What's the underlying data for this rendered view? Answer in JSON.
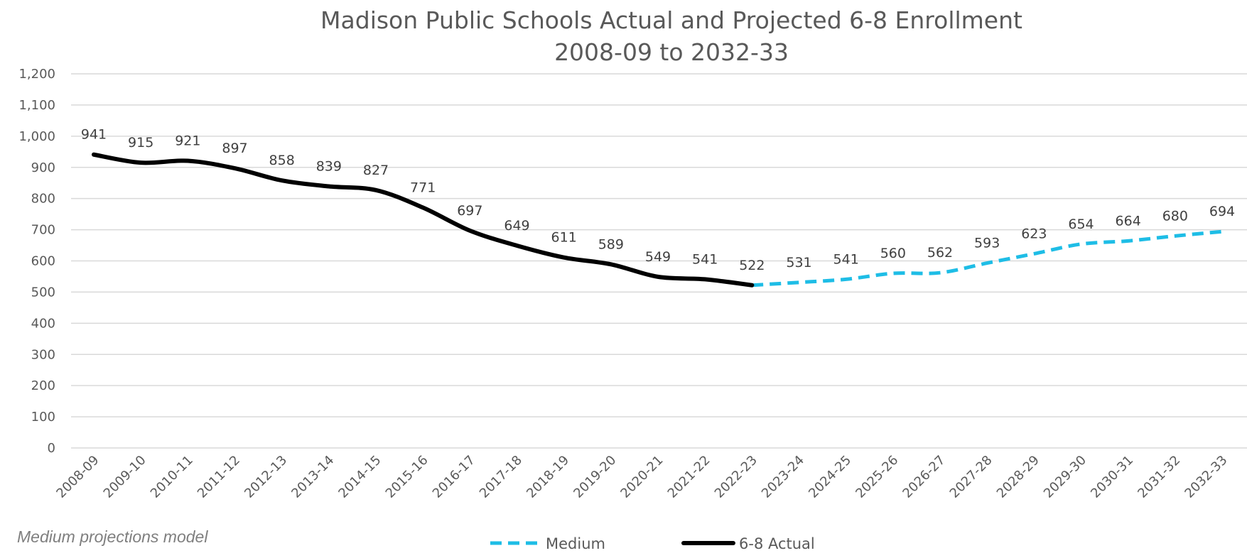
{
  "chart_data": {
    "type": "line",
    "title": "Madison Public Schools Actual and Projected 6-8 Enrollment",
    "subtitle": "2008-09 to 2032-33",
    "xlabel": "",
    "ylabel": "",
    "ylim": [
      0,
      1200
    ],
    "yticks": [
      "0",
      "100",
      "200",
      "300",
      "400",
      "500",
      "600",
      "700",
      "800",
      "900",
      "1,000",
      "1,100",
      "1,200"
    ],
    "grid": true,
    "legend_position": "bottom",
    "categories": [
      "2008-09",
      "2009-10",
      "2010-11",
      "2011-12",
      "2012-13",
      "2013-14",
      "2014-15",
      "2015-16",
      "2016-17",
      "2017-18",
      "2018-19",
      "2019-20",
      "2020-21",
      "2021-22",
      "2022-23",
      "2023-24",
      "2024-25",
      "2025-26",
      "2026-27",
      "2027-28",
      "2028-29",
      "2029-30",
      "2030-31",
      "2031-32",
      "2032-33"
    ],
    "series": [
      {
        "name": "Medium",
        "color": "#1ebde6",
        "style": "dashed",
        "values": [
          null,
          null,
          null,
          null,
          null,
          null,
          null,
          null,
          null,
          null,
          null,
          null,
          null,
          null,
          522,
          531,
          541,
          560,
          562,
          593,
          623,
          654,
          664,
          680,
          694
        ]
      },
      {
        "name": "6-8 Actual",
        "color": "#000000",
        "style": "solid",
        "values": [
          941,
          915,
          921,
          897,
          858,
          839,
          827,
          771,
          697,
          649,
          611,
          589,
          549,
          541,
          522,
          null,
          null,
          null,
          null,
          null,
          null,
          null,
          null,
          null,
          null
        ]
      }
    ],
    "data_labels": [
      "941",
      "915",
      "921",
      "897",
      "858",
      "839",
      "827",
      "771",
      "697",
      "649",
      "611",
      "589",
      "549",
      "541",
      "522",
      "531",
      "541",
      "560",
      "562",
      "593",
      "623",
      "654",
      "664",
      "680",
      "694"
    ],
    "annotation": "Medium projections model"
  }
}
